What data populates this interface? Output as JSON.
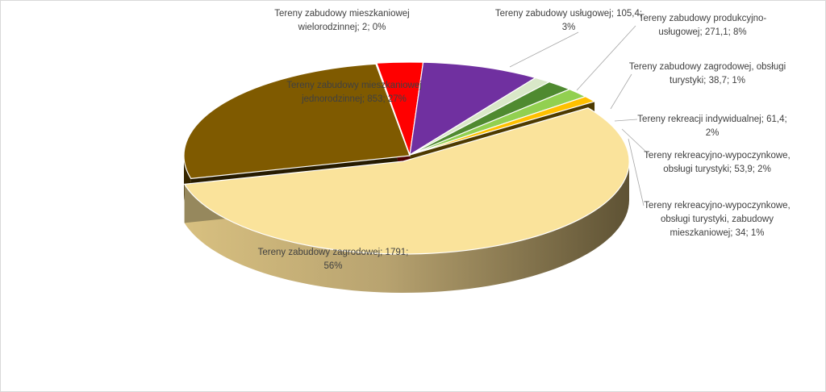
{
  "chart_data": {
    "type": "pie",
    "variant": "3d-exploded",
    "title": "",
    "slices": [
      {
        "name": "Tereny zabudowy mieszkaniowej wielorodzinnej",
        "value": 2,
        "percent": "0%",
        "color": "#e8c8c8",
        "label": [
          "Tereny zabudowy mieszkaniowej",
          "wielorodzinnej; 2; 0%"
        ]
      },
      {
        "name": "Tereny zabudowy usługowej",
        "value": 105.4,
        "percent": "3%",
        "color": "#ff0000",
        "label": [
          "Tereny zabudowy usługowej; 105,4;",
          "3%"
        ]
      },
      {
        "name": "Tereny zabudowy produkcyjno-usługowej",
        "value": 271.1,
        "percent": "8%",
        "color": "#7030a0",
        "label": [
          "Tereny zabudowy produkcyjno-",
          "usługowej; 271,1; 8%"
        ]
      },
      {
        "name": "Tereny zabudowy zagrodowej, obsługi turystyki",
        "value": 38.7,
        "percent": "1%",
        "color": "#d9e8c8",
        "label": [
          "Tereny zabudowy zagrodowej, obsługi",
          "turystyki; 38,7; 1%"
        ]
      },
      {
        "name": "Tereny rekreacji indywidualnej",
        "value": 61.4,
        "percent": "2%",
        "color": "#4f8a30",
        "label": [
          "Tereny rekreacji indywidualnej; 61,4;",
          "2%"
        ]
      },
      {
        "name": "Tereny rekreacyjno-wypoczynkowe, obsługi turystyki",
        "value": 53.9,
        "percent": "2%",
        "color": "#92d050",
        "label": [
          "Tereny rekreacyjno-wypoczynkowe,",
          "obsługi turystyki; 53,9; 2%"
        ]
      },
      {
        "name": "Tereny rekreacyjno-wypoczynkowe, obsługi turystyki, zabudowy mieszkaniowej",
        "value": 34,
        "percent": "1%",
        "color": "#ffc000",
        "label": [
          "Tereny rekreacyjno-wypoczynkowe,",
          "obsługi turystyki, zabudowy",
          "mieszkaniowej; 34; 1%"
        ]
      },
      {
        "name": "Tereny zabudowy zagrodowej",
        "value": 1791,
        "percent": "56%",
        "color": "#fae39b",
        "label": [
          "Tereny zabudowy zagrodowej; 1791;",
          "56%"
        ]
      },
      {
        "name": "Tereny zabudowy mieszkaniowej jednorodzinnej",
        "value": 853,
        "percent": "27%",
        "color": "#7f5a00",
        "label": [
          "Tereny zabudowy mieszkaniowej",
          "jednorodzinnej; 853; 27%"
        ]
      }
    ],
    "legend": "none"
  }
}
